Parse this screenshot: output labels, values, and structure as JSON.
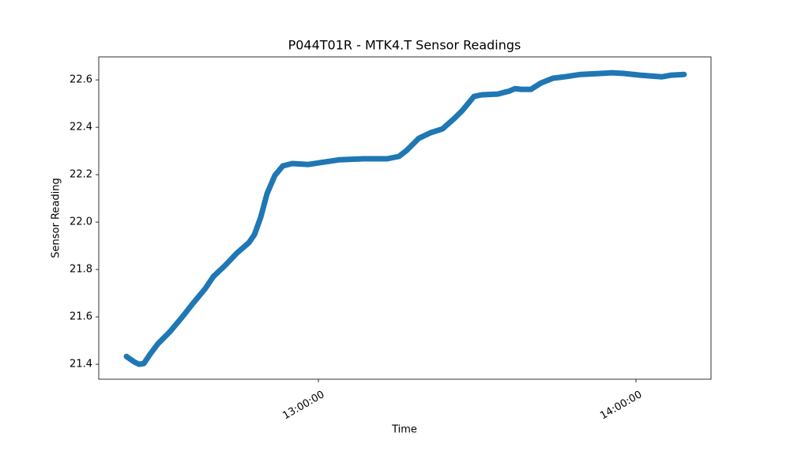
{
  "chart_data": {
    "type": "line",
    "title": "P044T01R - MTK4.T Sensor Readings",
    "x_label": "Time",
    "y_label": "Sensor Reading",
    "x": [
      "12:23:44",
      "12:25:13",
      "12:26:07",
      "12:27:01",
      "12:28:13",
      "12:29:42",
      "12:31:56",
      "12:34:11",
      "12:36:25",
      "12:38:39",
      "12:40:09",
      "12:42:23",
      "12:44:38",
      "12:46:52",
      "12:47:55",
      "12:49:06",
      "12:50:18",
      "12:51:47",
      "12:53:17",
      "12:55:04",
      "12:58:04",
      "13:01:03",
      "13:04:02",
      "13:08:30",
      "13:12:59",
      "13:15:13",
      "13:16:43",
      "13:18:57",
      "13:21:12",
      "13:23:26",
      "13:25:40",
      "13:27:10",
      "13:29:24",
      "13:30:54",
      "13:33:53",
      "13:36:07",
      "13:37:10",
      "13:38:21",
      "13:40:09",
      "13:42:05",
      "13:44:20",
      "13:46:34",
      "13:49:33",
      "13:53:17",
      "13:55:31",
      "13:57:46",
      "14:00:45",
      "14:04:56",
      "14:06:43",
      "14:09:06"
    ],
    "series": [
      {
        "color": "#1f77b4",
        "values": [
          21.433,
          21.41,
          21.4,
          21.403,
          21.443,
          21.487,
          21.537,
          21.597,
          21.66,
          21.72,
          21.77,
          21.817,
          21.87,
          21.913,
          21.947,
          22.02,
          22.12,
          22.197,
          22.237,
          22.247,
          22.243,
          22.253,
          22.263,
          22.267,
          22.267,
          22.277,
          22.303,
          22.353,
          22.377,
          22.393,
          22.437,
          22.47,
          22.53,
          22.537,
          22.54,
          22.553,
          22.563,
          22.56,
          22.56,
          22.587,
          22.607,
          22.613,
          22.623,
          22.627,
          22.63,
          22.627,
          22.62,
          22.613,
          22.62,
          22.623
        ]
      }
    ],
    "xlim": [
      "12:18:30",
      "14:14:11"
    ],
    "xticks": [
      "13:00:00",
      "14:00:00"
    ],
    "ylim": [
      21.337,
      22.697
    ],
    "yticks": [
      21.4,
      21.6,
      21.8,
      {
        "value": 22.0,
        "label": "22.0"
      },
      22.2,
      22.4,
      22.6
    ]
  }
}
